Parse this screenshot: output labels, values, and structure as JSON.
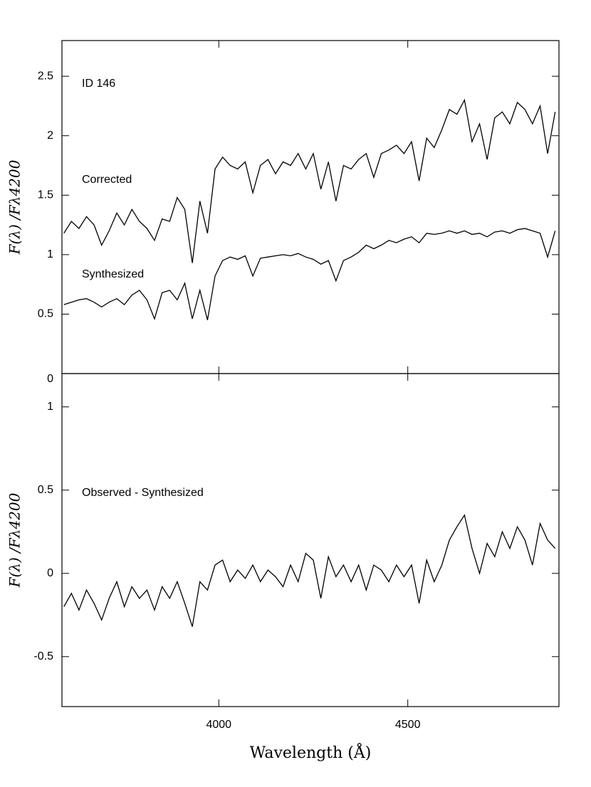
{
  "chart_data": [
    {
      "type": "line",
      "ylabel": "F(λ) /Fλ4200",
      "annotations": [
        "ID 146",
        "Corrected",
        "Synthesized"
      ],
      "xlim": [
        3585,
        4900
      ],
      "ylim": [
        0,
        2.8
      ],
      "yticks": [
        0,
        0.5,
        1,
        1.5,
        2,
        2.5
      ],
      "x": [
        3590,
        3610,
        3630,
        3650,
        3670,
        3690,
        3710,
        3730,
        3750,
        3770,
        3790,
        3810,
        3830,
        3850,
        3870,
        3890,
        3910,
        3930,
        3950,
        3970,
        3990,
        4010,
        4030,
        4050,
        4070,
        4090,
        4110,
        4130,
        4150,
        4170,
        4190,
        4210,
        4230,
        4250,
        4270,
        4290,
        4310,
        4330,
        4350,
        4370,
        4390,
        4410,
        4430,
        4450,
        4470,
        4490,
        4510,
        4530,
        4550,
        4570,
        4590,
        4610,
        4630,
        4650,
        4670,
        4690,
        4710,
        4730,
        4750,
        4770,
        4790,
        4810,
        4830,
        4850,
        4870,
        4890
      ],
      "series": [
        {
          "color": "#000000",
          "values": [
            1.18,
            1.28,
            1.22,
            1.32,
            1.25,
            1.08,
            1.2,
            1.35,
            1.25,
            1.38,
            1.28,
            1.22,
            1.12,
            1.3,
            1.28,
            1.48,
            1.38,
            0.93,
            1.45,
            1.18,
            1.72,
            1.82,
            1.75,
            1.72,
            1.78,
            1.52,
            1.75,
            1.8,
            1.68,
            1.78,
            1.75,
            1.85,
            1.72,
            1.85,
            1.55,
            1.78,
            1.45,
            1.75,
            1.72,
            1.8,
            1.85,
            1.65,
            1.85,
            1.88,
            1.92,
            1.85,
            1.95,
            1.62,
            1.98,
            1.9,
            2.05,
            2.22,
            2.18,
            2.3,
            1.95,
            2.1,
            1.8,
            2.15,
            2.2,
            2.1,
            2.28,
            2.22,
            2.1,
            2.25,
            1.85,
            2.2
          ]
        },
        {
          "color": "#000000",
          "values": [
            0.58,
            0.6,
            0.62,
            0.63,
            0.6,
            0.56,
            0.6,
            0.63,
            0.58,
            0.66,
            0.7,
            0.62,
            0.46,
            0.68,
            0.7,
            0.62,
            0.76,
            0.46,
            0.7,
            0.45,
            0.82,
            0.95,
            0.98,
            0.96,
            0.99,
            0.82,
            0.97,
            0.98,
            0.99,
            1.0,
            0.99,
            1.01,
            0.98,
            0.96,
            0.92,
            0.95,
            0.78,
            0.95,
            0.98,
            1.02,
            1.08,
            1.05,
            1.08,
            1.12,
            1.1,
            1.13,
            1.15,
            1.1,
            1.18,
            1.17,
            1.18,
            1.2,
            1.18,
            1.2,
            1.17,
            1.18,
            1.15,
            1.19,
            1.2,
            1.18,
            1.21,
            1.22,
            1.2,
            1.18,
            0.98,
            1.2
          ]
        }
      ]
    },
    {
      "type": "line",
      "ylabel": "F(λ) /Fλ4200",
      "xlabel": "Wavelength (Å)",
      "annotations": [
        "Observed - Synthesized"
      ],
      "xlim": [
        3585,
        4900
      ],
      "ylim": [
        -0.8,
        1.2
      ],
      "xticks": [
        4000,
        4500
      ],
      "yticks": [
        -0.5,
        0,
        0.5,
        1
      ],
      "x": [
        3590,
        3610,
        3630,
        3650,
        3670,
        3690,
        3710,
        3730,
        3750,
        3770,
        3790,
        3810,
        3830,
        3850,
        3870,
        3890,
        3910,
        3930,
        3950,
        3970,
        3990,
        4010,
        4030,
        4050,
        4070,
        4090,
        4110,
        4130,
        4150,
        4170,
        4190,
        4210,
        4230,
        4250,
        4270,
        4290,
        4310,
        4330,
        4350,
        4370,
        4390,
        4410,
        4430,
        4450,
        4470,
        4490,
        4510,
        4530,
        4550,
        4570,
        4590,
        4610,
        4630,
        4650,
        4670,
        4690,
        4710,
        4730,
        4750,
        4770,
        4790,
        4810,
        4830,
        4850,
        4870,
        4890
      ],
      "series": [
        {
          "color": "#000000",
          "values": [
            -0.2,
            -0.12,
            -0.22,
            -0.1,
            -0.18,
            -0.28,
            -0.15,
            -0.05,
            -0.2,
            -0.08,
            -0.15,
            -0.1,
            -0.22,
            -0.08,
            -0.15,
            -0.05,
            -0.18,
            -0.32,
            -0.05,
            -0.1,
            0.05,
            0.08,
            -0.05,
            0.02,
            -0.03,
            0.05,
            -0.05,
            0.02,
            -0.02,
            -0.08,
            0.05,
            -0.05,
            0.12,
            0.08,
            -0.15,
            0.1,
            -0.02,
            0.05,
            -0.05,
            0.05,
            -0.1,
            0.05,
            0.02,
            -0.05,
            0.05,
            -0.02,
            0.05,
            -0.18,
            0.08,
            -0.05,
            0.05,
            0.2,
            0.28,
            0.35,
            0.15,
            0.0,
            0.18,
            0.1,
            0.25,
            0.15,
            0.28,
            0.2,
            0.05,
            0.3,
            0.2,
            0.15
          ]
        }
      ]
    }
  ]
}
